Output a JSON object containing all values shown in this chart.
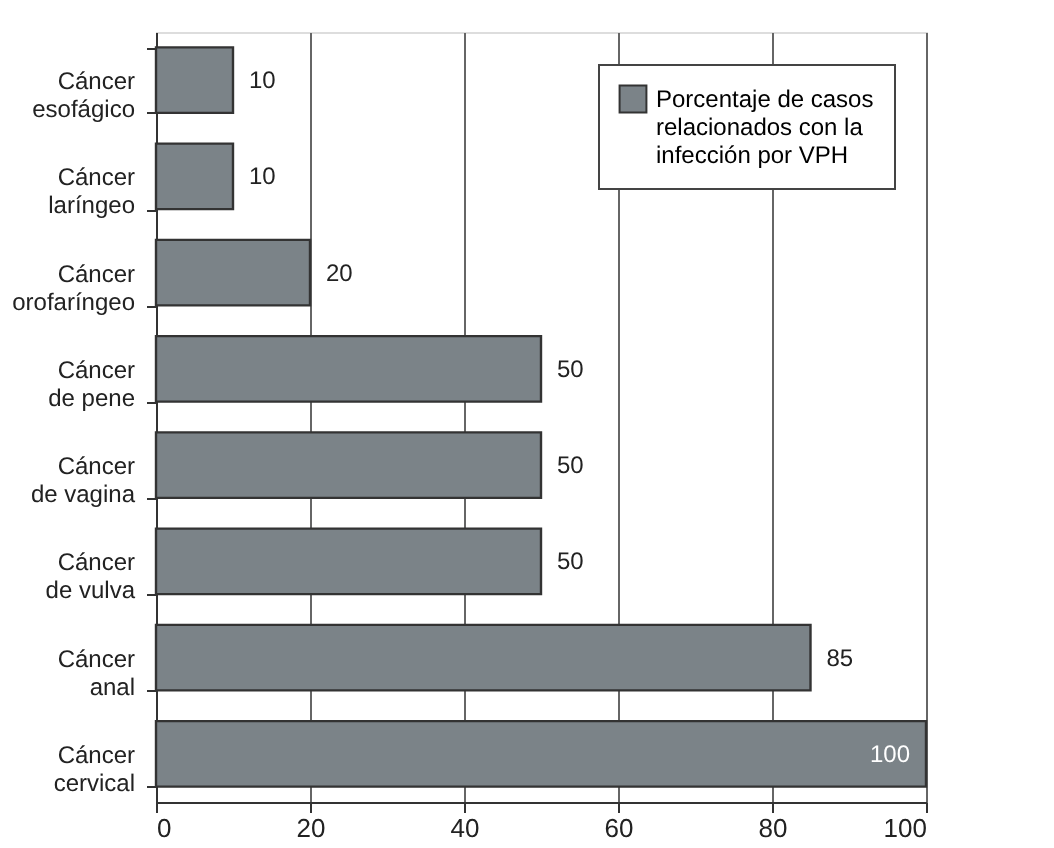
{
  "chart_data": {
    "type": "bar",
    "orientation": "horizontal",
    "categories": [
      "Cáncer esofágico",
      "Cáncer laríngeo",
      "Cáncer orofaríngeo",
      "Cáncer de pene",
      "Cáncer de vagina",
      "Cáncer de vulva",
      "Cáncer anal",
      "Cáncer cervical"
    ],
    "series": [
      {
        "name": "Porcentaje de casos relacionados con la infección por VPH",
        "color": "#7b8388",
        "values": [
          10,
          10,
          20,
          50,
          50,
          50,
          85,
          100
        ]
      }
    ],
    "xlim": [
      0,
      100
    ],
    "xticks": [
      0,
      20,
      40,
      60,
      80,
      100
    ],
    "grid": "x",
    "legend": "top right",
    "data_labels": true
  }
}
